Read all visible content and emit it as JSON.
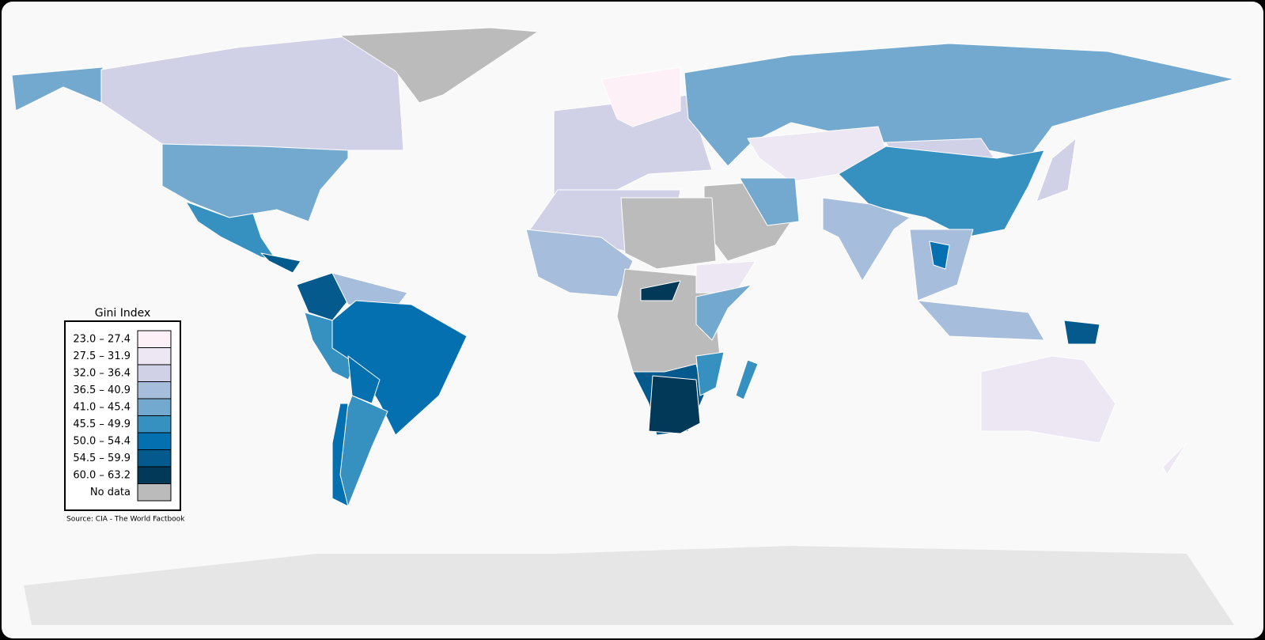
{
  "legend": {
    "title": "Gini Index",
    "items": [
      {
        "label": "23.0 – 27.4",
        "color": "#fdf0f6"
      },
      {
        "label": "27.5 – 31.9",
        "color": "#ece7f2"
      },
      {
        "label": "32.0 – 36.4",
        "color": "#d0d1e6"
      },
      {
        "label": "36.5 – 40.9",
        "color": "#a6bddb"
      },
      {
        "label": "41.0 – 45.4",
        "color": "#74a9cf"
      },
      {
        "label": "45.5 – 49.9",
        "color": "#3690c0"
      },
      {
        "label": "50.0 – 54.4",
        "color": "#0570b0"
      },
      {
        "label": "54.5 – 59.9",
        "color": "#045a8d"
      },
      {
        "label": "60.0 – 63.2",
        "color": "#023858"
      },
      {
        "label": "No data",
        "color": "#bbbbbb"
      }
    ]
  },
  "source": "Source: CIA - The World Factbook"
}
